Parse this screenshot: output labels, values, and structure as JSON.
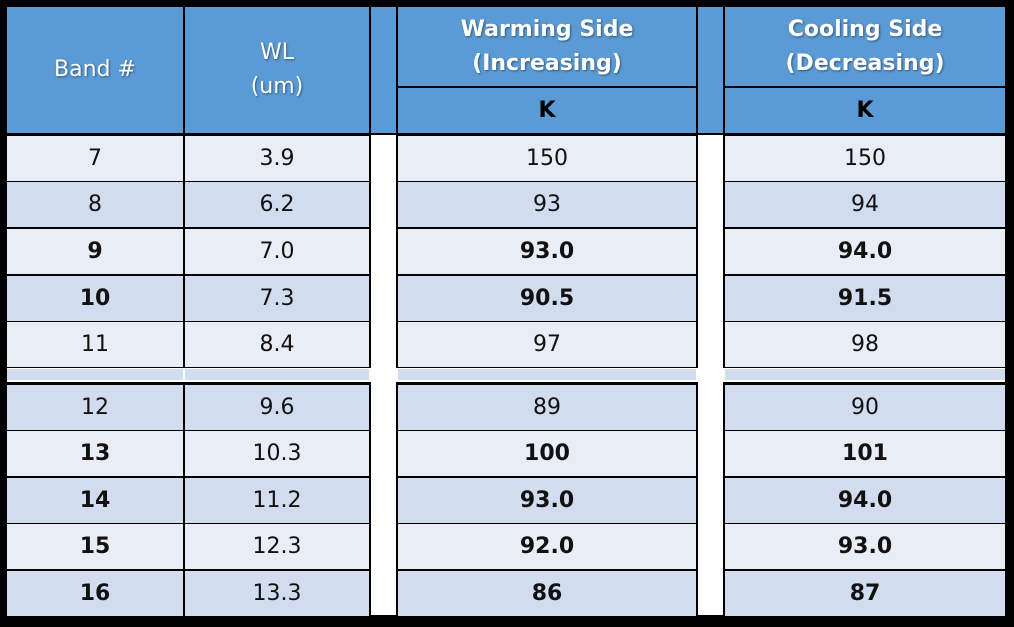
{
  "header": {
    "band_label": "Band #",
    "wl_label_line1": "WL",
    "wl_label_line2": "(um)",
    "warming_line1": "Warming Side",
    "warming_line2": "(Increasing)",
    "warming_unit": "K",
    "cooling_line1": "Cooling Side",
    "cooling_line2": "(Decreasing)",
    "cooling_unit": "K"
  },
  "rows": [
    {
      "band": "7",
      "wl": "3.9",
      "warming": "150",
      "cooling": "150",
      "bold": false
    },
    {
      "band": "8",
      "wl": "6.2",
      "warming": "93",
      "cooling": "94",
      "bold": false
    },
    {
      "band": "9",
      "wl": "7.0",
      "warming": "93.0",
      "cooling": "94.0",
      "bold": true
    },
    {
      "band": "10",
      "wl": "7.3",
      "warming": "90.5",
      "cooling": "91.5",
      "bold": true
    },
    {
      "band": "11",
      "wl": "8.4",
      "warming": "97",
      "cooling": "98",
      "bold": false
    },
    {
      "band": "12",
      "wl": "9.6",
      "warming": "89",
      "cooling": "90",
      "bold": false
    },
    {
      "band": "13",
      "wl": "10.3",
      "warming": "100",
      "cooling": "101",
      "bold": true
    },
    {
      "band": "14",
      "wl": "11.2",
      "warming": "93.0",
      "cooling": "94.0",
      "bold": true
    },
    {
      "band": "15",
      "wl": "12.3",
      "warming": "92.0",
      "cooling": "93.0",
      "bold": true
    },
    {
      "band": "16",
      "wl": "13.3",
      "warming": "86",
      "cooling": "87",
      "bold": true
    }
  ],
  "colors": {
    "header_bg": "#5b9bd5",
    "row_light": "#e9edf5",
    "row_dark": "#d1dcee",
    "gap": "#ffffff",
    "border": "#000000"
  }
}
